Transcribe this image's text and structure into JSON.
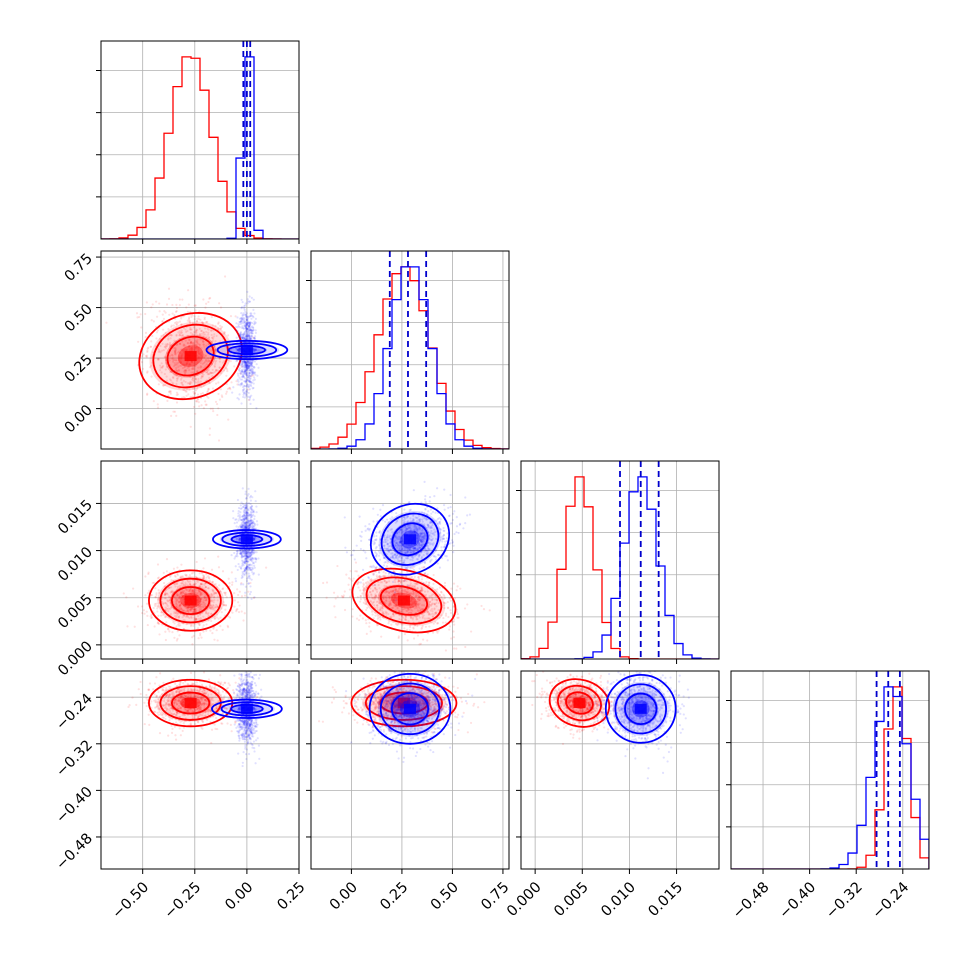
{
  "chart_data": {
    "type": "corner",
    "grid": true,
    "colors": {
      "posterior_a": "#ff0000",
      "posterior_b": "#0000ff",
      "quantile_line": "#0000cc"
    },
    "parameters": [
      {
        "range": [
          -0.7,
          0.25
        ],
        "ticks": [
          -0.5,
          -0.25,
          0.0,
          0.25
        ],
        "tick_labels": [
          "−0.50",
          "−0.25",
          "0.00",
          "0.25"
        ]
      },
      {
        "range": [
          -0.2,
          0.78
        ],
        "ticks": [
          0.0,
          0.25,
          0.5,
          0.75
        ],
        "tick_labels": [
          "0.00",
          "0.25",
          "0.50",
          "0.75"
        ]
      },
      {
        "range": [
          -0.0015,
          0.0195
        ],
        "ticks": [
          0.0,
          0.005,
          0.01,
          0.015
        ],
        "tick_labels": [
          "0.000",
          "0.005",
          "0.010",
          "0.015"
        ]
      },
      {
        "range": [
          -0.535,
          -0.195
        ],
        "ticks": [
          -0.48,
          -0.4,
          -0.32,
          -0.24
        ],
        "tick_labels": [
          "−0.48",
          "−0.40",
          "−0.32",
          "−0.24"
        ]
      }
    ],
    "series": [
      {
        "color": "#ff0000",
        "means": [
          -0.27,
          0.26,
          0.0047,
          -0.25
        ],
        "sds": [
          0.1,
          0.13,
          0.0016,
          0.02
        ],
        "corr": {
          "0-1": -0.2,
          "0-2": 0.0,
          "1-2": -0.3,
          "0-3": 0.0,
          "1-3": 0.0,
          "2-3": -0.15
        }
      },
      {
        "color": "#0000ff",
        "means": [
          0.0,
          0.29,
          0.0112,
          -0.26
        ],
        "sds": [
          0.022,
          0.1,
          0.0018,
          0.03
        ],
        "corr": {
          "0-1": 0.0,
          "0-2": 0.0,
          "1-2": 0.25,
          "0-3": 0.0,
          "1-3": 0.0,
          "2-3": 0.0
        }
      }
    ],
    "quantiles": [
      [
        -0.017,
        0.0,
        0.016
      ],
      [
        0.19,
        0.28,
        0.37
      ],
      [
        0.009,
        0.0112,
        0.0131
      ],
      [
        -0.285,
        -0.265,
        -0.245
      ]
    ]
  }
}
